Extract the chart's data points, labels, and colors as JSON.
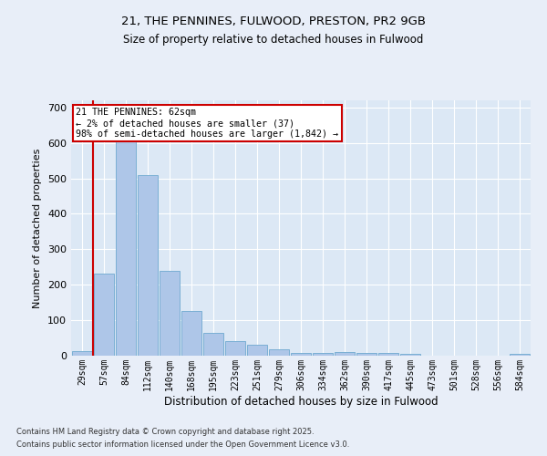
{
  "title1": "21, THE PENNINES, FULWOOD, PRESTON, PR2 9GB",
  "title2": "Size of property relative to detached houses in Fulwood",
  "xlabel": "Distribution of detached houses by size in Fulwood",
  "ylabel": "Number of detached properties",
  "categories": [
    "29sqm",
    "57sqm",
    "84sqm",
    "112sqm",
    "140sqm",
    "168sqm",
    "195sqm",
    "223sqm",
    "251sqm",
    "279sqm",
    "306sqm",
    "334sqm",
    "362sqm",
    "390sqm",
    "417sqm",
    "445sqm",
    "473sqm",
    "501sqm",
    "528sqm",
    "556sqm",
    "584sqm"
  ],
  "values": [
    14,
    232,
    608,
    510,
    240,
    125,
    65,
    42,
    30,
    18,
    7,
    7,
    10,
    7,
    7,
    6,
    0,
    0,
    0,
    0,
    5
  ],
  "bar_color": "#aec6e8",
  "bar_edge_color": "#7aafd4",
  "subject_line_color": "#cc0000",
  "annotation_text": "21 THE PENNINES: 62sqm\n← 2% of detached houses are smaller (37)\n98% of semi-detached houses are larger (1,842) →",
  "annotation_box_color": "#cc0000",
  "ylim": [
    0,
    720
  ],
  "yticks": [
    0,
    100,
    200,
    300,
    400,
    500,
    600,
    700
  ],
  "background_color": "#e8eef8",
  "plot_bg_color": "#dce8f5",
  "grid_color": "#ffffff",
  "footer1": "Contains HM Land Registry data © Crown copyright and database right 2025.",
  "footer2": "Contains public sector information licensed under the Open Government Licence v3.0."
}
